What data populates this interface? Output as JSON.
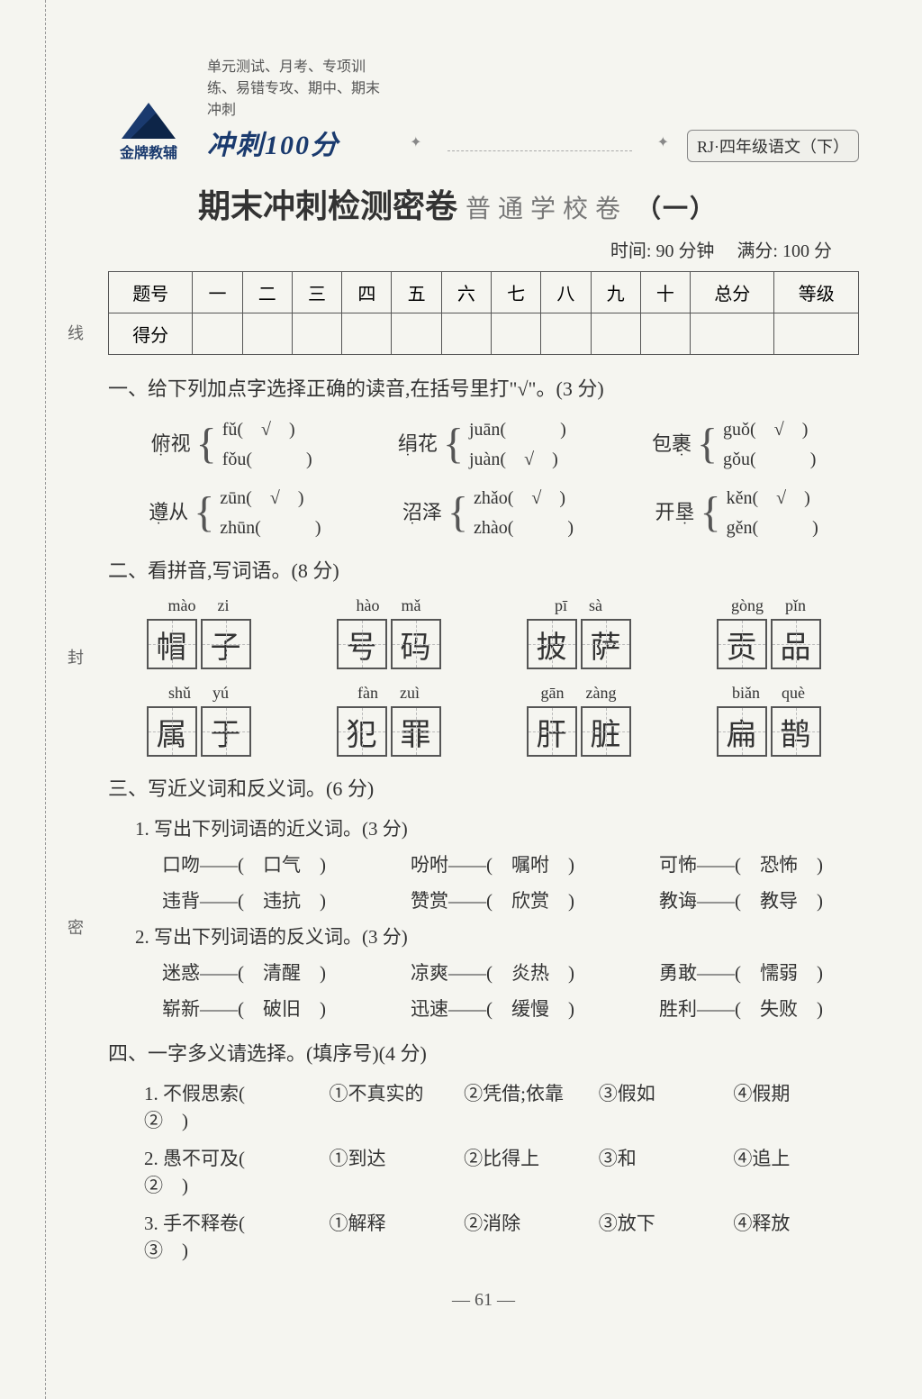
{
  "header": {
    "top_line": "单元测试、月考、专项训练、易错专攻、期中、期末冲刺",
    "logo_text": "金牌教辅",
    "brand_title": "冲刺100分",
    "grade_badge": "RJ·四年级语文（下）"
  },
  "title": {
    "main": "期末冲刺检测密卷",
    "sub": "普通学校卷",
    "paren": "（一）"
  },
  "meta": {
    "time_label": "时间:",
    "time_value": "90 分钟",
    "score_label": "满分:",
    "score_value": "100 分"
  },
  "score_table": {
    "headers": [
      "题号",
      "一",
      "二",
      "三",
      "四",
      "五",
      "六",
      "七",
      "八",
      "九",
      "十",
      "总分",
      "等级"
    ],
    "row_label": "得分"
  },
  "binding_labels": [
    "线",
    "封",
    "密"
  ],
  "q1": {
    "title": "一、给下列加点字选择正确的读音,在括号里打\"√\"。(3 分)",
    "rows": [
      [
        {
          "word": "俯视",
          "dot": 0,
          "opts": [
            {
              "py": "fǔ",
              "check": true
            },
            {
              "py": "fǒu",
              "check": false
            }
          ]
        },
        {
          "word": "绢花",
          "dot": 0,
          "opts": [
            {
              "py": "juān",
              "check": false
            },
            {
              "py": "juàn",
              "check": true
            }
          ]
        },
        {
          "word": "包裹",
          "dot": 1,
          "opts": [
            {
              "py": "guǒ",
              "check": true
            },
            {
              "py": "gǒu",
              "check": false
            }
          ]
        }
      ],
      [
        {
          "word": "遵从",
          "dot": 0,
          "opts": [
            {
              "py": "zūn",
              "check": true
            },
            {
              "py": "zhūn",
              "check": false
            }
          ]
        },
        {
          "word": "沼泽",
          "dot": 0,
          "opts": [
            {
              "py": "zhǎo",
              "check": true
            },
            {
              "py": "zhào",
              "check": false
            }
          ]
        },
        {
          "word": "开垦",
          "dot": 1,
          "opts": [
            {
              "py": "kěn",
              "check": true
            },
            {
              "py": "gěn",
              "check": false
            }
          ]
        }
      ]
    ]
  },
  "q2": {
    "title": "二、看拼音,写词语。(8 分)",
    "items": [
      {
        "pinyin": [
          "mào",
          "zi"
        ],
        "chars": [
          "帽",
          "子"
        ]
      },
      {
        "pinyin": [
          "hào",
          "mǎ"
        ],
        "chars": [
          "号",
          "码"
        ]
      },
      {
        "pinyin": [
          "pī",
          "sà"
        ],
        "chars": [
          "披",
          "萨"
        ]
      },
      {
        "pinyin": [
          "gòng",
          "pǐn"
        ],
        "chars": [
          "贡",
          "品"
        ]
      },
      {
        "pinyin": [
          "shǔ",
          "yú"
        ],
        "chars": [
          "属",
          "于"
        ]
      },
      {
        "pinyin": [
          "fàn",
          "zuì"
        ],
        "chars": [
          "犯",
          "罪"
        ]
      },
      {
        "pinyin": [
          "gān",
          "zàng"
        ],
        "chars": [
          "肝",
          "脏"
        ]
      },
      {
        "pinyin": [
          "biǎn",
          "què"
        ],
        "chars": [
          "扁",
          "鹊"
        ]
      }
    ]
  },
  "q3": {
    "title": "三、写近义词和反义词。(6 分)",
    "sub1": "1. 写出下列词语的近义词。(3 分)",
    "rows1": [
      [
        {
          "w": "口吻",
          "a": "口气"
        },
        {
          "w": "吩咐",
          "a": "嘱咐"
        },
        {
          "w": "可怖",
          "a": "恐怖"
        }
      ],
      [
        {
          "w": "违背",
          "a": "违抗"
        },
        {
          "w": "赞赏",
          "a": "欣赏"
        },
        {
          "w": "教诲",
          "a": "教导"
        }
      ]
    ],
    "sub2": "2. 写出下列词语的反义词。(3 分)",
    "rows2": [
      [
        {
          "w": "迷惑",
          "a": "清醒"
        },
        {
          "w": "凉爽",
          "a": "炎热"
        },
        {
          "w": "勇敢",
          "a": "懦弱"
        }
      ],
      [
        {
          "w": "崭新",
          "a": "破旧"
        },
        {
          "w": "迅速",
          "a": "缓慢"
        },
        {
          "w": "胜利",
          "a": "失败"
        }
      ]
    ]
  },
  "q4": {
    "title": "四、一字多义请选择。(填序号)(4 分)",
    "rows": [
      {
        "stem": "1. 不假思索",
        "ans": "②",
        "opts": [
          "①不真实的",
          "②凭借;依靠",
          "③假如",
          "④假期"
        ]
      },
      {
        "stem": "2. 愚不可及",
        "ans": "②",
        "opts": [
          "①到达",
          "②比得上",
          "③和",
          "④追上"
        ]
      },
      {
        "stem": "3. 手不释卷",
        "ans": "③",
        "opts": [
          "①解释",
          "②消除",
          "③放下",
          "④释放"
        ]
      }
    ]
  },
  "page_num": "— 61 —"
}
